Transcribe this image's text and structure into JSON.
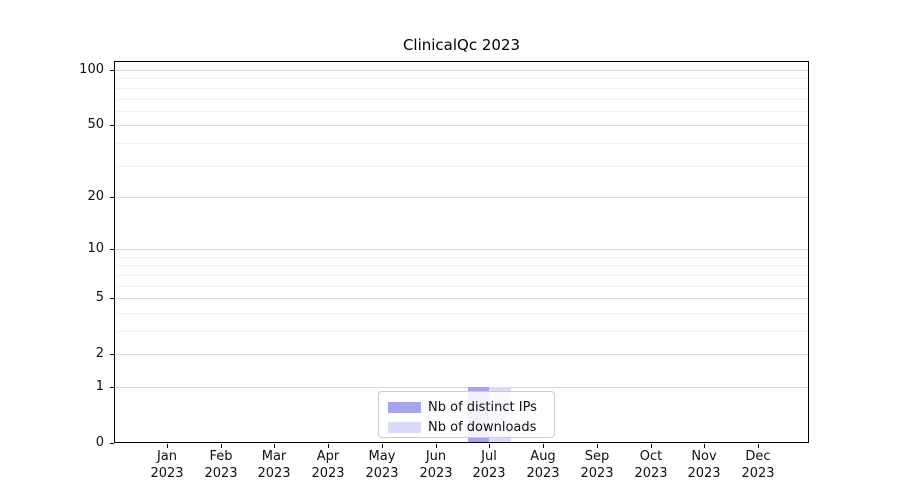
{
  "chart_data": {
    "type": "bar",
    "title": "ClinicalQc 2023",
    "categories": [
      "Jan",
      "Feb",
      "Mar",
      "Apr",
      "May",
      "Jun",
      "Jul",
      "Aug",
      "Sep",
      "Oct",
      "Nov",
      "Dec"
    ],
    "year_label": "2023",
    "series": [
      {
        "name": "Nb of distinct IPs",
        "color": "#a5a5ee",
        "values": [
          0,
          0,
          0,
          0,
          0,
          0,
          1,
          0,
          0,
          0,
          0,
          0
        ]
      },
      {
        "name": "Nb of downloads",
        "color": "#dadaf8",
        "values": [
          0,
          0,
          0,
          0,
          0,
          0,
          1,
          0,
          0,
          0,
          0,
          0
        ]
      }
    ],
    "yticks": [
      0,
      1,
      2,
      5,
      10,
      20,
      50,
      100
    ],
    "y_minor_ticks": [
      3,
      4,
      6,
      7,
      8,
      9,
      30,
      40,
      60,
      70,
      80,
      90
    ],
    "ylim": [
      0,
      100
    ],
    "yscale": "symlog",
    "grid": true,
    "legend_position": "bottom-center"
  },
  "legend": {
    "items": [
      {
        "label": "Nb of distinct IPs",
        "color": "#a5a5ee"
      },
      {
        "label": "Nb of downloads",
        "color": "#dadaf8"
      }
    ]
  },
  "colors": {
    "frame": "#000000",
    "grid_major": "#d9d9d9",
    "grid_minor": "#f0f0f0",
    "text": "#111111",
    "background": "#ffffff"
  }
}
